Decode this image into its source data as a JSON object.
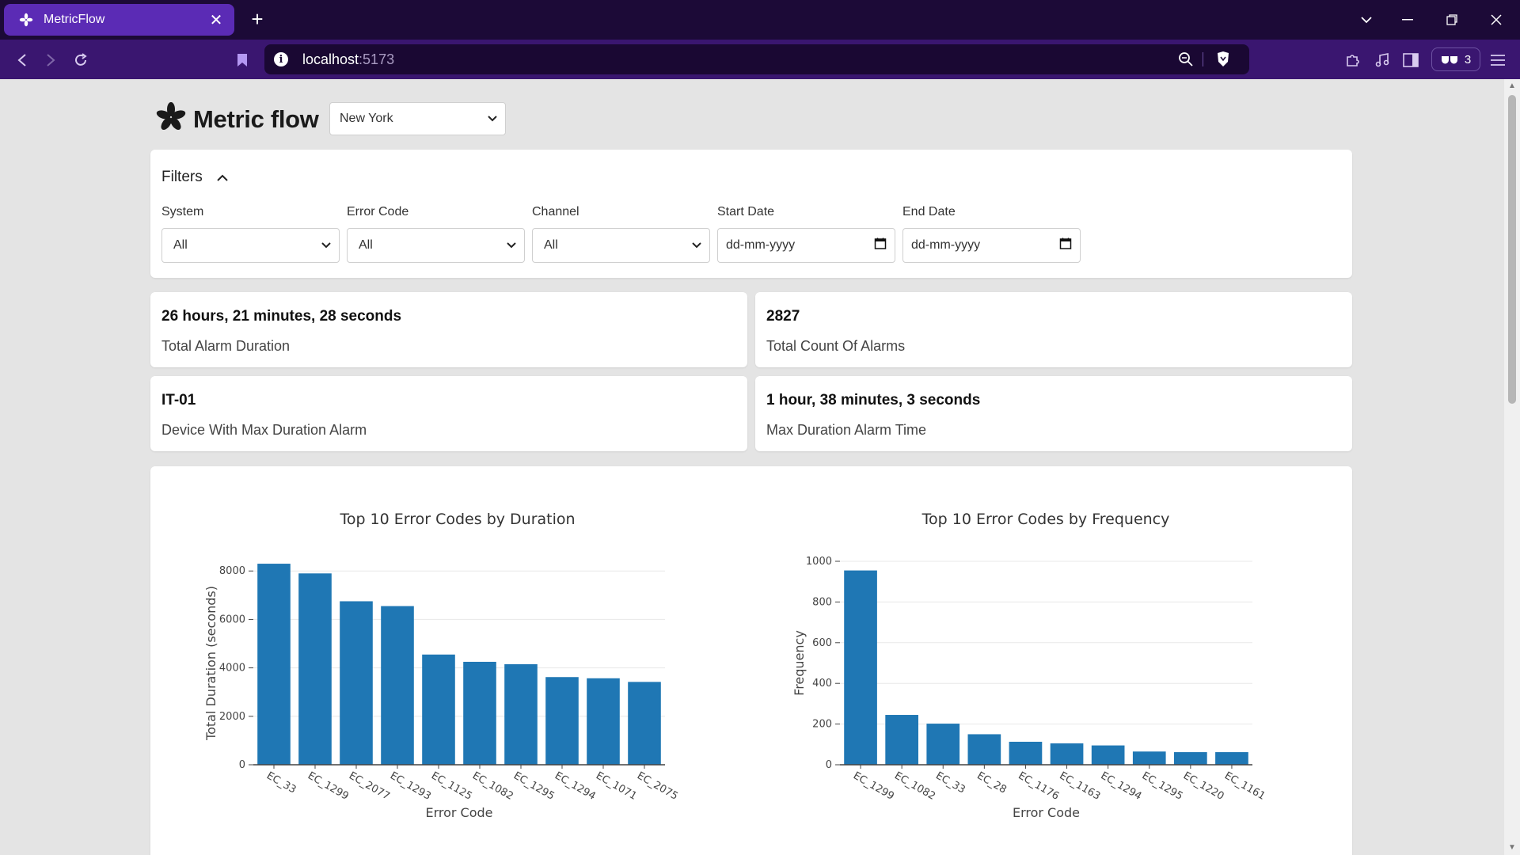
{
  "browser": {
    "tab_title": "MetricFlow",
    "url_host": "localhost",
    "url_port": ":5173",
    "extension_count": "3",
    "accent": "#5b2bb5",
    "tabbar_bg": "#1c0a37",
    "toolbar_bg": "#3a1670"
  },
  "header": {
    "app_name": "Metric flow",
    "location_select": {
      "value": "New York"
    }
  },
  "filters": {
    "title": "Filters",
    "system": {
      "label": "System",
      "value": "All"
    },
    "error_code": {
      "label": "Error Code",
      "value": "All"
    },
    "channel": {
      "label": "Channel",
      "value": "All"
    },
    "start_date": {
      "label": "Start Date",
      "placeholder": "dd-mm-yyyy"
    },
    "end_date": {
      "label": "End Date",
      "placeholder": "dd-mm-yyyy"
    }
  },
  "stats": [
    {
      "value": "26 hours, 21 minutes, 28 seconds",
      "label": "Total Alarm Duration"
    },
    {
      "value": "2827",
      "label": "Total Count Of Alarms"
    },
    {
      "value": "IT-01",
      "label": "Device With Max Duration Alarm"
    },
    {
      "value": "1 hour, 38 minutes, 3 seconds",
      "label": "Max Duration Alarm Time"
    }
  ],
  "chart_data": [
    {
      "type": "bar",
      "title": "Top 10 Error Codes by Duration",
      "xlabel": "Error Code",
      "ylabel": "Total Duration (seconds)",
      "categories": [
        "EC_33",
        "EC_1299",
        "EC_2077",
        "EC_1293",
        "EC_1125",
        "EC_1082",
        "EC_1295",
        "EC_1294",
        "EC_1071",
        "EC_2075"
      ],
      "values": [
        8300,
        7900,
        6750,
        6550,
        4550,
        4250,
        4150,
        3620,
        3570,
        3420
      ],
      "ylim": [
        0,
        8400
      ],
      "yticks": [
        0,
        2000,
        4000,
        6000,
        8000
      ],
      "grid": true,
      "bar_color": "#1f77b4"
    },
    {
      "type": "bar",
      "title": "Top 10 Error Codes by Frequency",
      "xlabel": "Error Code",
      "ylabel": "Frequency",
      "categories": [
        "EC_1299",
        "EC_1082",
        "EC_33",
        "EC_28",
        "EC_1176",
        "EC_1163",
        "EC_1294",
        "EC_1295",
        "EC_1220",
        "EC_1161"
      ],
      "values": [
        955,
        245,
        202,
        150,
        113,
        105,
        95,
        65,
        62,
        62
      ],
      "ylim": [
        0,
        1000
      ],
      "yticks": [
        0,
        200,
        400,
        600,
        800,
        1000
      ],
      "grid": true,
      "bar_color": "#1f77b4"
    }
  ]
}
